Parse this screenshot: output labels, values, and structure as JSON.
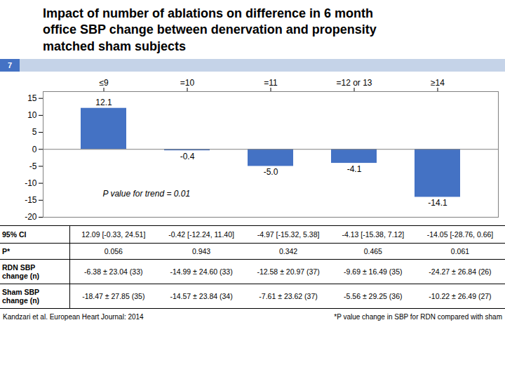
{
  "chart_data": {
    "type": "bar",
    "title": "Impact of number of ablations on difference in 6 month\noffice SBP change between denervation and propensity\nmatched sham subjects",
    "slide": {
      "number": 7,
      "color": "#4472C4",
      "band_color": "#C5D3E8"
    },
    "categories": [
      "≤9",
      "=10",
      "=11",
      "=12 or 13",
      "≥14"
    ],
    "values": [
      12.1,
      -0.4,
      -5.0,
      -4.1,
      -14.1
    ],
    "value_labels": [
      "12.1",
      "-0.4",
      "-5.0",
      "-4.1",
      "-14.1"
    ],
    "data_labels": true,
    "color": "#4472C4",
    "ylim": [
      -20,
      17
    ],
    "yticks": [
      -20,
      -15,
      -10,
      -5,
      0,
      5,
      10,
      15
    ],
    "annotations": [
      "P value for trend = 0.01"
    ],
    "table": {
      "row_labels": [
        "95% CI",
        "P*",
        "RDN SBP\nchange (n)",
        "Sham SBP\nchange (n)"
      ],
      "rows": [
        [
          "12.09 [-0.33, 24.51]",
          "-0.42 [-12.24, 11.40]",
          "-4.97 [-15.32, 5.38]",
          "-4.13 [-15.38, 7.12]",
          "-14.05 [-28.76, 0.66]"
        ],
        [
          "0.056",
          "0.943",
          "0.342",
          "0.465",
          "0.061"
        ],
        [
          "-6.38 ± 23.04 (33)",
          "-14.99 ± 24.60 (33)",
          "-12.58 ± 20.97 (37)",
          "-9.69 ± 16.49 (35)",
          "-24.27 ± 26.84 (26)"
        ],
        [
          "-18.47 ± 27.85 (35)",
          "-14.57 ± 23.84 (34)",
          "-7.61 ± 23.62 (37)",
          "-5.56 ± 29.25 (36)",
          "-10.22 ± 26.49 (27)"
        ]
      ]
    },
    "source": "Kandzari et al. European Heart Journal: 2014",
    "footnote": "*P value change in SBP for RDN compared with sham"
  }
}
